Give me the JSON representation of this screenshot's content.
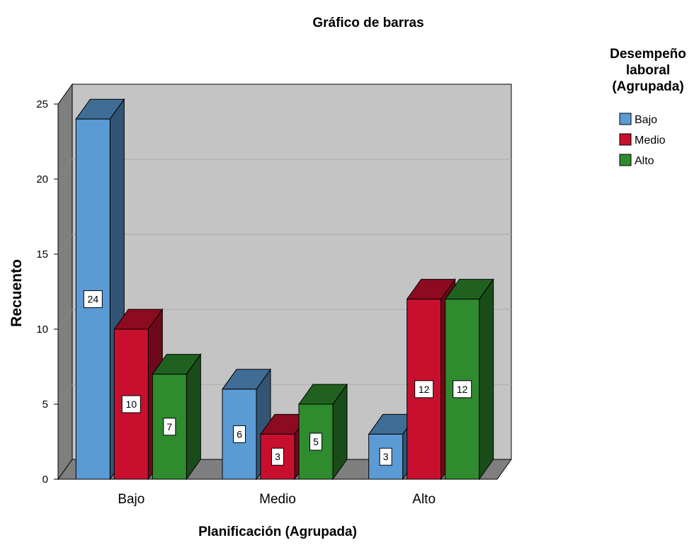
{
  "chart_data": {
    "type": "bar",
    "title": "Gráfico de barras",
    "xlabel": "Planificación (Agrupada)",
    "ylabel": "Recuento",
    "categories": [
      "Bajo",
      "Medio",
      "Alto"
    ],
    "ylim": [
      0,
      25
    ],
    "yticks": [
      0,
      5,
      10,
      15,
      20,
      25
    ],
    "grid": true,
    "legend": {
      "title_lines": [
        "Desempeño",
        "laboral",
        "(Agrupada)"
      ],
      "placement": "top-right"
    },
    "series": [
      {
        "name": "Bajo",
        "color": "#5b9bd5",
        "values": [
          24,
          6,
          3
        ]
      },
      {
        "name": "Medio",
        "color": "#c8102e",
        "values": [
          10,
          3,
          12
        ]
      },
      {
        "name": "Alto",
        "color": "#2e8b2e",
        "values": [
          7,
          5,
          12
        ]
      }
    ]
  }
}
